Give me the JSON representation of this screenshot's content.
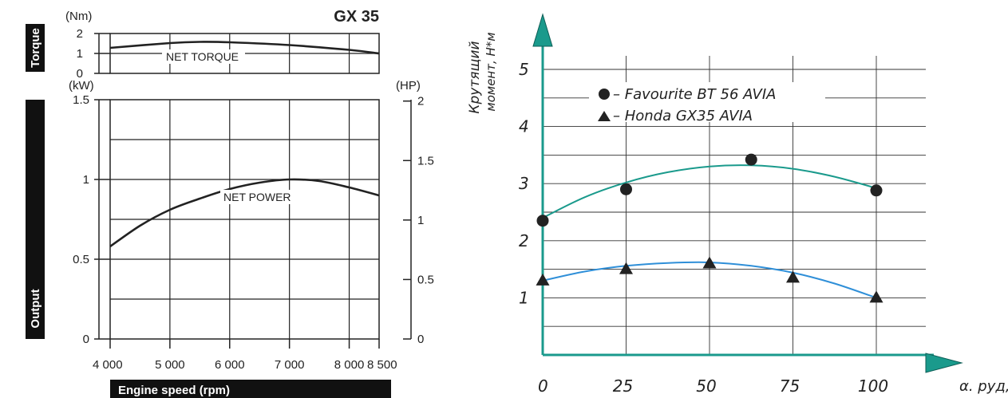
{
  "left_chart": {
    "title": "GX 35",
    "side_labels": {
      "torque": "Torque",
      "output": "Output"
    },
    "torque_unit": "(Nm)",
    "power_unit_kw": "(kW)",
    "power_unit_hp": "(HP)",
    "xlabel": "Engine speed (rpm)",
    "torque_ticks": [
      "2",
      "1",
      "0"
    ],
    "kw_ticks": [
      "1.5",
      "1",
      "0.5",
      "0"
    ],
    "hp_ticks": [
      "2",
      "1.5",
      "1",
      "0.5",
      "0"
    ],
    "x_ticks": [
      "4 000",
      "5 000",
      "6 000",
      "7 000",
      "8 000",
      "8 500"
    ],
    "torque_curve_label": "NET TORQUE",
    "power_curve_label": "NET POWER"
  },
  "right_chart": {
    "ylabel_line1": "Крутящий",
    "ylabel_line2": "момент, Н*м",
    "xlabel": "α. руд, %",
    "y_ticks": [
      "5",
      "4",
      "3",
      "2",
      "1"
    ],
    "x_ticks": [
      "0",
      "25",
      "50",
      "75",
      "100"
    ],
    "legend": [
      "– Favourite BT 56 AVIA",
      "– Honda GX35 AVIA"
    ],
    "colors": {
      "favourite_line": "#1a9a8c",
      "honda_line": "#2f8fd8",
      "axis": "#1a9a8c"
    }
  },
  "chart_data": [
    {
      "type": "line",
      "title": "GX 35",
      "xlabel": "Engine speed (rpm)",
      "xlim": [
        4000,
        8500
      ],
      "series": [
        {
          "name": "NET TORQUE",
          "unit": "Nm",
          "ylim": [
            0,
            2
          ],
          "x": [
            4000,
            5000,
            5500,
            6000,
            7000,
            8000,
            8500
          ],
          "y": [
            1.28,
            1.52,
            1.58,
            1.56,
            1.42,
            1.18,
            1.0
          ]
        },
        {
          "name": "NET POWER",
          "unit": "kW",
          "ylim": [
            0,
            1.5
          ],
          "x": [
            4000,
            4500,
            5000,
            5500,
            6000,
            6500,
            7000,
            7500,
            8000,
            8500
          ],
          "y": [
            0.58,
            0.71,
            0.81,
            0.88,
            0.94,
            0.98,
            1.0,
            0.99,
            0.95,
            0.9
          ]
        }
      ]
    },
    {
      "type": "scatter",
      "ylabel": "Крутящий момент, Н*м",
      "xlabel": "α. руд, %",
      "xlim": [
        0,
        110
      ],
      "ylim": [
        0,
        5.5
      ],
      "series": [
        {
          "name": "Favourite BT 56 AVIA",
          "marker": "circle",
          "x": [
            0,
            25,
            62.5,
            100
          ],
          "y": [
            2.35,
            2.9,
            3.42,
            2.88
          ],
          "fit": {
            "x": [
              0,
              12.5,
              25,
              37.5,
              50,
              62.5,
              75,
              87.5,
              100
            ],
            "y": [
              2.4,
              2.76,
              3.02,
              3.2,
              3.3,
              3.32,
              3.26,
              3.12,
              2.92
            ]
          }
        },
        {
          "name": "Honda GX35 AVIA",
          "marker": "triangle",
          "x": [
            0,
            25,
            50,
            75,
            100
          ],
          "y": [
            1.3,
            1.5,
            1.6,
            1.35,
            1.0
          ],
          "fit": {
            "x": [
              0,
              12.5,
              25,
              37.5,
              50,
              62.5,
              75,
              87.5,
              100
            ],
            "y": [
              1.3,
              1.46,
              1.56,
              1.61,
              1.62,
              1.56,
              1.44,
              1.25,
              1.0
            ]
          }
        }
      ]
    }
  ]
}
